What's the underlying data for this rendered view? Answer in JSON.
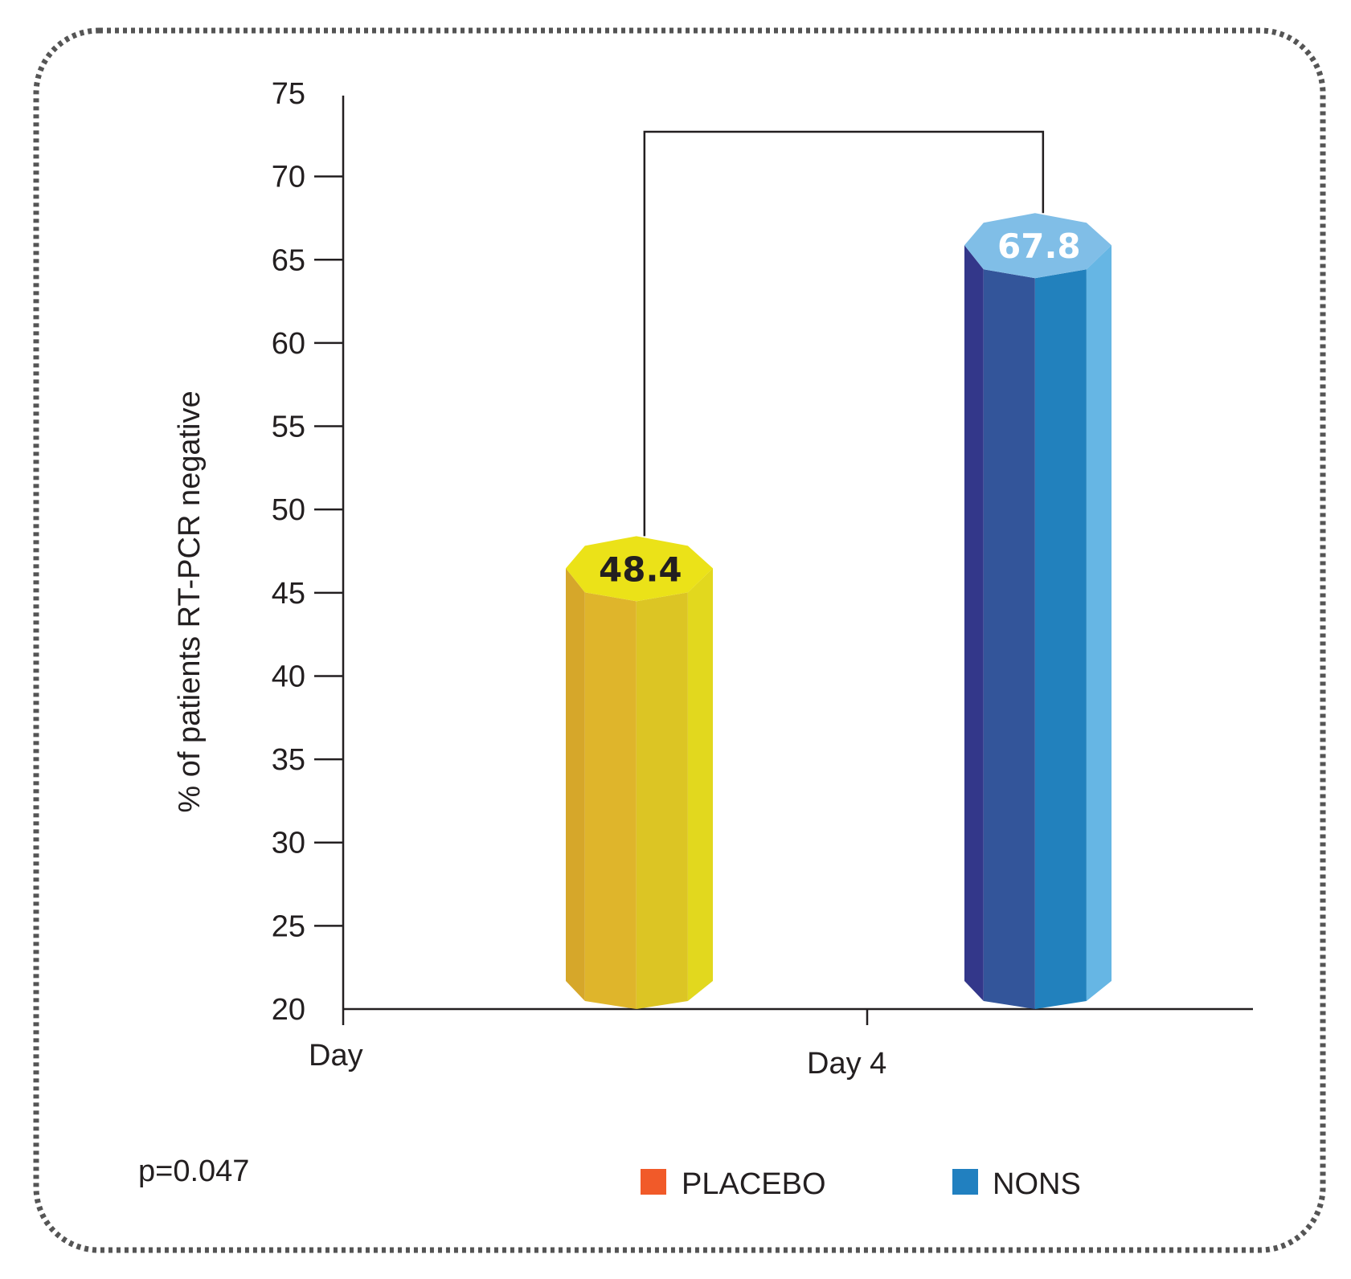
{
  "chart_data": {
    "type": "bar",
    "categories": [
      "Day 4"
    ],
    "x_tick_labels": [
      "Day",
      "Day 4"
    ],
    "ylabel": "% of patients RT-PCR negative",
    "ylim": [
      20,
      75
    ],
    "yticks": [
      20,
      25,
      30,
      35,
      40,
      45,
      50,
      55,
      60,
      65,
      70,
      75
    ],
    "grid": false,
    "series": [
      {
        "name": "PLACEBO",
        "values": [
          48.4
        ],
        "data_label": "48.4",
        "label_color": "#231f20",
        "bar_colors": [
          "#d6a72a",
          "#dfb52b",
          "#dcc524",
          "#e2d81e"
        ],
        "cap_color": "#ebe218",
        "legend_color": "#f15a29"
      },
      {
        "name": "NONS",
        "values": [
          67.8
        ],
        "data_label": "67.8",
        "label_color": "#ffffff",
        "bar_colors": [
          "#33378a",
          "#33559a",
          "#2281bd",
          "#66b6e4"
        ],
        "cap_color": "#80bee7",
        "legend_color": "#2180c0"
      }
    ],
    "annotation": "p=0.047",
    "significance_bracket": true,
    "legend_position": "bottom"
  }
}
